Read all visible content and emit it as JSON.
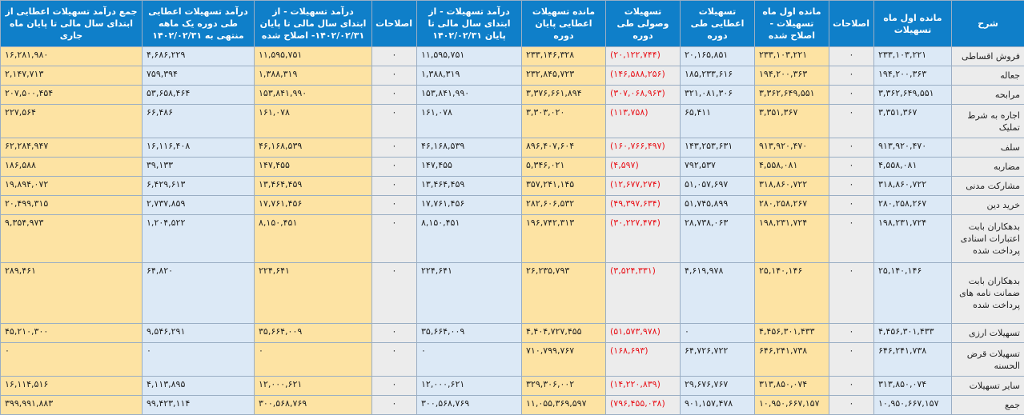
{
  "headers": [
    "شرح",
    "مانده اول ماه تسهیلات",
    "اصلاحات",
    "مانده اول ماه تسهیلات - اصلاح شده",
    "تسهیلات اعطایی طی دوره",
    "تسهیلات وصولی طی دوره",
    "مانده تسهیلات اعطایی پایان دوره",
    "درآمد تسهیلات - از ابتدای سال مالی تا پایان ۱۴۰۲/۰۲/۳۱",
    "اصلاحات",
    "درآمد تسهیلات - از ابتدای سال مالی تا پایان ۱۴۰۲/۰۲/۳۱- اصلاح شده",
    "درآمد تسهیلات اعطایی طی دوره یک ماهه منتهی به ۱۴۰۲/۰۲/۳۱",
    "جمع درآمد تسهیلات اعطایی از ابتدای سال مالی تا پایان ماه جاری"
  ],
  "rows": [
    {
      "label": "فروش اقساطی",
      "values": [
        "۲۳۳,۱۰۳,۲۲۱",
        "۰",
        "۲۳۳,۱۰۳,۲۲۱",
        "۲۰,۱۶۵,۸۵۱",
        "(۲۰,۱۲۲,۷۴۴)",
        "۲۳۳,۱۴۶,۳۲۸",
        "۱۱,۵۹۵,۷۵۱",
        "۰",
        "۱۱,۵۹۵,۷۵۱",
        "۴,۶۸۶,۲۲۹",
        "۱۶,۲۸۱,۹۸۰"
      ]
    },
    {
      "label": "جعاله",
      "values": [
        "۱۹۴,۲۰۰,۳۶۳",
        "۰",
        "۱۹۴,۲۰۰,۳۶۳",
        "۱۸۵,۲۳۳,۶۱۶",
        "(۱۴۶,۵۸۸,۲۵۶)",
        "۲۳۲,۸۴۵,۷۲۳",
        "۱,۳۸۸,۳۱۹",
        "۰",
        "۱,۳۸۸,۳۱۹",
        "۷۵۹,۳۹۴",
        "۲,۱۴۷,۷۱۳"
      ]
    },
    {
      "label": "مرابحه",
      "values": [
        "۳,۳۶۲,۶۴۹,۵۵۱",
        "۰",
        "۳,۳۶۲,۶۴۹,۵۵۱",
        "۳۲۱,۰۸۱,۳۰۶",
        "(۳۰۷,۰۶۸,۹۶۳)",
        "۳,۳۷۶,۶۶۱,۸۹۴",
        "۱۵۳,۸۴۱,۹۹۰",
        "۰",
        "۱۵۳,۸۴۱,۹۹۰",
        "۵۳,۶۵۸,۴۶۴",
        "۲۰۷,۵۰۰,۴۵۴"
      ]
    },
    {
      "label": "اجاره به شرط تملیک",
      "values": [
        "۳,۳۵۱,۳۶۷",
        "۰",
        "۳,۳۵۱,۳۶۷",
        "۶۵,۴۱۱",
        "(۱۱۳,۷۵۸)",
        "۳,۳۰۳,۰۲۰",
        "۱۶۱,۰۷۸",
        "۰",
        "۱۶۱,۰۷۸",
        "۶۶,۴۸۶",
        "۲۲۷,۵۶۴"
      ]
    },
    {
      "label": "سلف",
      "values": [
        "۹۱۳,۹۲۰,۴۷۰",
        "۰",
        "۹۱۳,۹۲۰,۴۷۰",
        "۱۴۳,۲۵۳,۶۳۱",
        "(۱۶۰,۷۶۶,۴۹۷)",
        "۸۹۶,۴۰۷,۶۰۴",
        "۴۶,۱۶۸,۵۳۹",
        "۰",
        "۴۶,۱۶۸,۵۳۹",
        "۱۶,۱۱۶,۴۰۸",
        "۶۲,۲۸۴,۹۴۷"
      ]
    },
    {
      "label": "مضاربه",
      "values": [
        "۴,۵۵۸,۰۸۱",
        "۰",
        "۴,۵۵۸,۰۸۱",
        "۷۹۲,۵۳۷",
        "(۴,۵۹۷)",
        "۵,۳۴۶,۰۲۱",
        "۱۴۷,۴۵۵",
        "۰",
        "۱۴۷,۴۵۵",
        "۳۹,۱۳۳",
        "۱۸۶,۵۸۸"
      ]
    },
    {
      "label": "مشارکت مدنی",
      "values": [
        "۳۱۸,۸۶۰,۷۲۲",
        "۰",
        "۳۱۸,۸۶۰,۷۲۲",
        "۵۱,۰۵۷,۶۹۷",
        "(۱۲,۶۷۷,۲۷۴)",
        "۳۵۷,۲۴۱,۱۴۵",
        "۱۳,۴۶۴,۴۵۹",
        "۰",
        "۱۳,۴۶۴,۴۵۹",
        "۶,۴۲۹,۶۱۳",
        "۱۹,۸۹۴,۰۷۲"
      ]
    },
    {
      "label": "خرید دین",
      "values": [
        "۲۸۰,۲۵۸,۲۶۷",
        "۰",
        "۲۸۰,۲۵۸,۲۶۷",
        "۵۱,۷۴۵,۸۹۹",
        "(۴۹,۳۹۷,۶۳۴)",
        "۲۸۲,۶۰۶,۵۳۲",
        "۱۷,۷۶۱,۴۵۶",
        "۰",
        "۱۷,۷۶۱,۴۵۶",
        "۲,۷۳۷,۸۵۹",
        "۲۰,۴۹۹,۳۱۵"
      ]
    },
    {
      "label": "بدهکاران بابت اعتبارات اسنادی پرداخت شده",
      "values": [
        "۱۹۸,۲۳۱,۷۲۴",
        "۰",
        "۱۹۸,۲۳۱,۷۲۴",
        "۲۸,۷۳۸,۰۶۳",
        "(۳۰,۲۲۷,۴۷۴)",
        "۱۹۶,۷۴۲,۳۱۳",
        "۸,۱۵۰,۴۵۱",
        "۰",
        "۸,۱۵۰,۴۵۱",
        "۱,۲۰۴,۵۲۲",
        "۹,۳۵۴,۹۷۳"
      ]
    },
    {
      "label": "بدهکاران بابت ضمانت نامه های پرداخت شده",
      "values": [
        "۲۵,۱۴۰,۱۴۶",
        "۰",
        "۲۵,۱۴۰,۱۴۶",
        "۴,۶۱۹,۹۷۸",
        "(۳,۵۲۴,۳۳۱)",
        "۲۶,۲۳۵,۷۹۳",
        "۲۲۴,۶۴۱",
        "۰",
        "۲۲۴,۶۴۱",
        "۶۴,۸۲۰",
        "۲۸۹,۴۶۱"
      ]
    },
    {
      "label": "تسهیلات ارزی",
      "values": [
        "۴,۴۵۶,۳۰۱,۴۳۳",
        "۰",
        "۴,۴۵۶,۳۰۱,۴۳۳",
        "۰",
        "(۵۱,۵۷۳,۹۷۸)",
        "۴,۴۰۴,۷۲۷,۴۵۵",
        "۳۵,۶۶۴,۰۰۹",
        "۰",
        "۳۵,۶۶۴,۰۰۹",
        "۹,۵۴۶,۲۹۱",
        "۴۵,۲۱۰,۳۰۰"
      ]
    },
    {
      "label": "تسهیلات قرض الحسنه",
      "values": [
        "۶۴۶,۲۴۱,۷۳۸",
        "۰",
        "۶۴۶,۲۴۱,۷۳۸",
        "۶۴,۷۲۶,۷۲۲",
        "(۱۶۸,۶۹۳)",
        "۷۱۰,۷۹۹,۷۶۷",
        "۰",
        "۰",
        "۰",
        "۰",
        "۰"
      ]
    },
    {
      "label": "سایر تسهیلات",
      "values": [
        "۳۱۳,۸۵۰,۰۷۴",
        "۰",
        "۳۱۳,۸۵۰,۰۷۴",
        "۲۹,۶۷۶,۷۶۷",
        "(۱۴,۲۲۰,۸۳۹)",
        "۳۲۹,۳۰۶,۰۰۲",
        "۱۲,۰۰۰,۶۲۱",
        "۰",
        "۱۲,۰۰۰,۶۲۱",
        "۴,۱۱۳,۸۹۵",
        "۱۶,۱۱۴,۵۱۶"
      ]
    },
    {
      "label": "جمع",
      "values": [
        "۱۰,۹۵۰,۶۶۷,۱۵۷",
        "۰",
        "۱۰,۹۵۰,۶۶۷,۱۵۷",
        "۹۰۱,۱۵۷,۴۷۸",
        "(۷۹۶,۴۵۵,۰۳۸)",
        "۱۱,۰۵۵,۳۶۹,۵۹۷",
        "۳۰۰,۵۶۸,۷۶۹",
        "۰",
        "۳۰۰,۵۶۸,۷۶۹",
        "۹۹,۴۲۳,۱۱۴",
        "۳۹۹,۹۹۱,۸۸۳"
      ]
    }
  ],
  "colors": {
    "header_bg": "#0f7fc9",
    "header_text": "#ffffff",
    "highlight_yellow": "#fde3a3",
    "highlight_blue": "#dce9f6",
    "neutral_gray": "#ececec",
    "negative_text": "#e8141b",
    "grid_border": "#9aaec4"
  }
}
